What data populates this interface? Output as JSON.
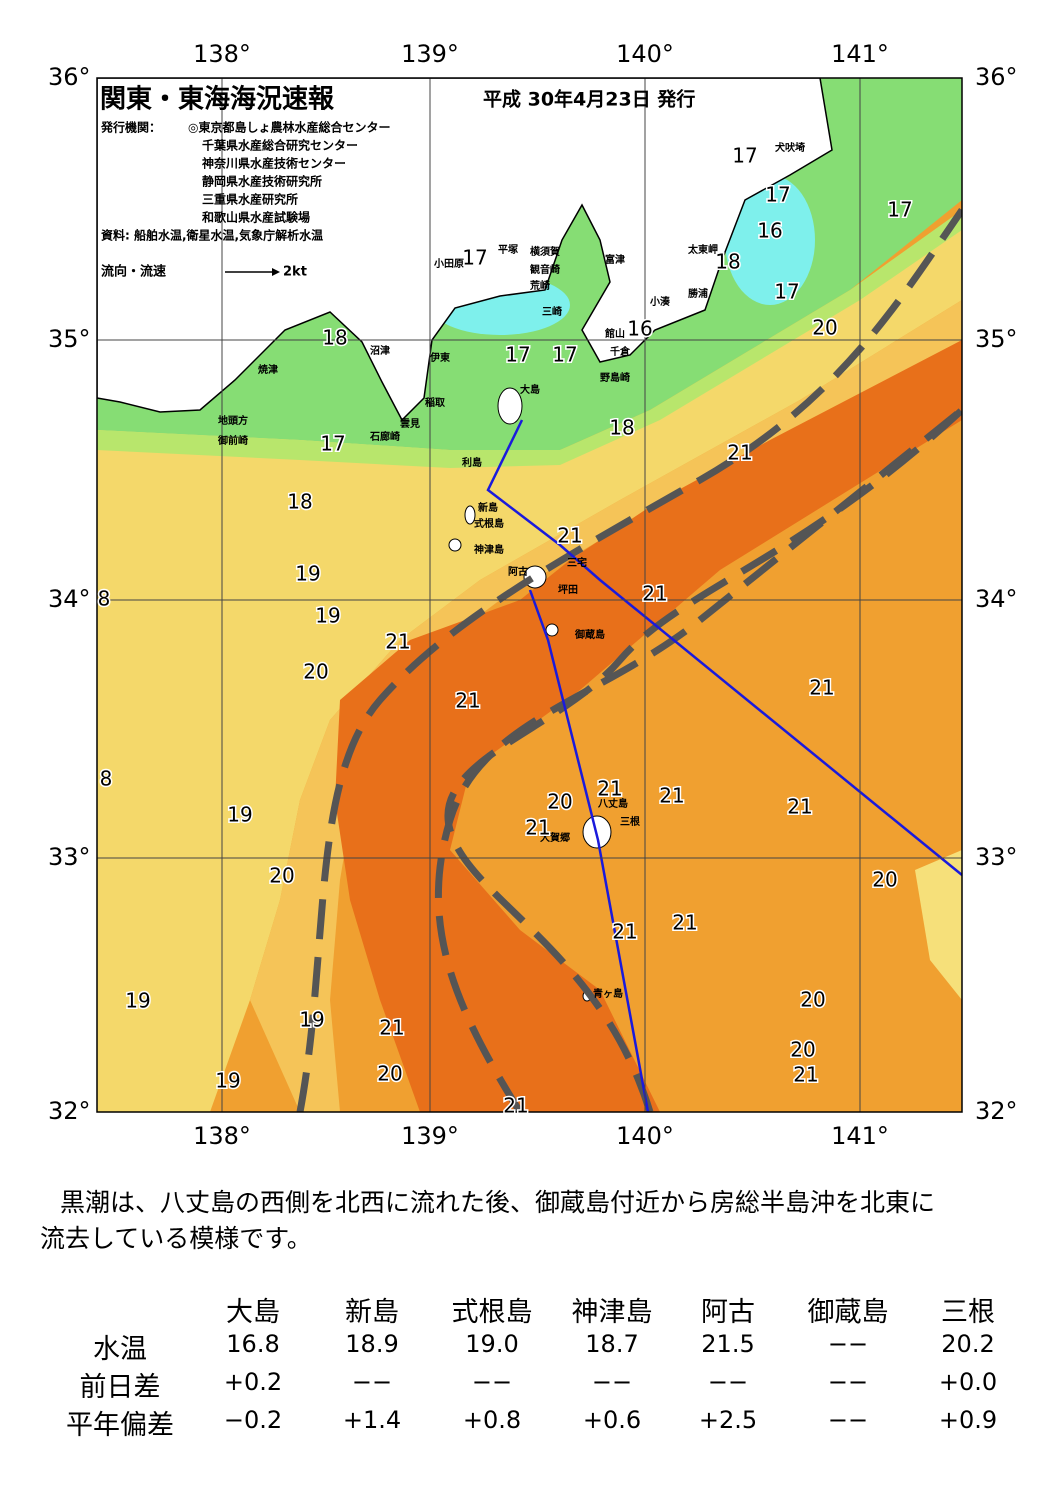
{
  "map": {
    "title": "関東・東海海況速報",
    "date": "平成 30年4月23日 発行",
    "issuer_label": "発行機関：",
    "issuers": [
      "◎東京都島しょ農林水産総合センター",
      "千葉県水産総合研究センター",
      "神奈川県水産技術センター",
      "静岡県水産技術研究所",
      "三重県水産研究所",
      "和歌山県水産試験場"
    ],
    "source": "資料: 船舶水温,衛星水温,気象庁解析水温",
    "legend_label": "流向・流速",
    "legend_speed": "2kt",
    "lon_labels": [
      "138°",
      "139°",
      "140°",
      "141°"
    ],
    "lat_labels": [
      "36°",
      "35°",
      "34°",
      "33°",
      "32°"
    ],
    "places": [
      "犬吠埼",
      "太東岬",
      "勝浦",
      "小湊",
      "富津",
      "横須賀",
      "観音崎",
      "荒崎",
      "三崎",
      "平塚",
      "小田原",
      "館山",
      "千倉",
      "野島崎",
      "大島",
      "稲取",
      "雲見",
      "石廊崎",
      "沼津",
      "伊東",
      "焼津",
      "地頭方",
      "御前崎",
      "利島",
      "新島",
      "式根島",
      "神津島",
      "阿古",
      "三宅",
      "坪田",
      "御蔵島",
      "八丈島",
      "三根",
      "大賀郷",
      "青ヶ島"
    ],
    "isotherms": [
      "17",
      "17",
      "16",
      "17",
      "18",
      "17",
      "17",
      "16",
      "17",
      "17",
      "20",
      "18",
      "17",
      "18",
      "18",
      "21",
      "21",
      "19",
      "21",
      "19",
      "21",
      "20",
      "21",
      "21",
      "21",
      "20",
      "21",
      "21",
      "19",
      "21",
      "20",
      "20",
      "21",
      "21",
      "20",
      "20",
      "21",
      "19",
      "19",
      "21",
      "20",
      "19",
      "21",
      "8",
      "8"
    ]
  },
  "description": [
    "黒潮は、八丈島の西側を北西に流れた後、御蔵島付近から房総半島沖を北東に",
    "流去している模様です。"
  ],
  "table": {
    "columns": [
      "大島",
      "新島",
      "式根島",
      "神津島",
      "阿古",
      "御蔵島",
      "三根"
    ],
    "rows": [
      {
        "label": "水温",
        "values": [
          "16.8",
          "18.9",
          "19.0",
          "18.7",
          "21.5",
          "−−",
          "20.2"
        ]
      },
      {
        "label": "前日差",
        "values": [
          "+0.2",
          "−−",
          "−−",
          "−−",
          "−−",
          "−−",
          "+0.0"
        ]
      },
      {
        "label": "平年偏差",
        "values": [
          "−0.2",
          "+1.4",
          "+0.8",
          "+0.6",
          "+2.5",
          "−−",
          "+0.9"
        ]
      }
    ]
  }
}
